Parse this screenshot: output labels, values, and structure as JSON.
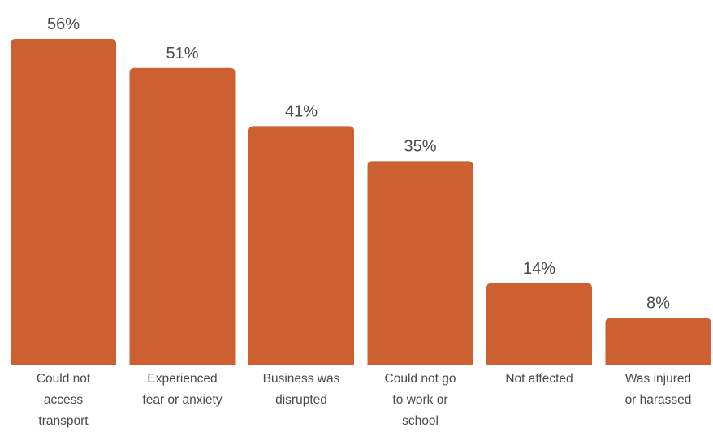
{
  "chart_data": {
    "type": "bar",
    "categories": [
      [
        "Could not",
        "access",
        "transport"
      ],
      [
        "Experienced",
        "fear or anxiety"
      ],
      [
        "Business was",
        "disrupted"
      ],
      [
        "Could not go",
        "to work or",
        "school"
      ],
      [
        "Not affected"
      ],
      [
        "Was injured",
        "or harassed"
      ]
    ],
    "values": [
      56,
      51,
      41,
      35,
      14,
      8
    ],
    "value_labels": [
      "56%",
      "51%",
      "41%",
      "35%",
      "14%",
      "8%"
    ],
    "ylim": [
      0,
      56
    ],
    "grid": false,
    "legend": "none",
    "bar_color": "#cc6030"
  }
}
